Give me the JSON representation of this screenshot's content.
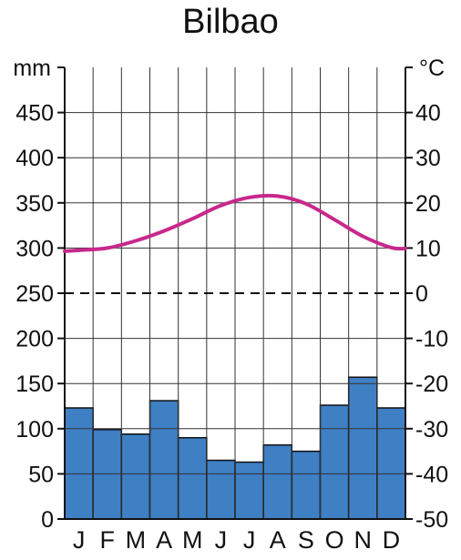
{
  "chart_data": {
    "type": "bar+line",
    "title": "Bilbao",
    "categories": [
      "J",
      "F",
      "M",
      "A",
      "M",
      "J",
      "J",
      "A",
      "S",
      "O",
      "N",
      "D"
    ],
    "precipitation": {
      "unit": "mm",
      "values": [
        123,
        99,
        94,
        131,
        90,
        65,
        63,
        82,
        75,
        126,
        157,
        123
      ],
      "ylim": [
        0,
        500
      ],
      "ticks": [
        0,
        50,
        100,
        150,
        200,
        250,
        300,
        350,
        400,
        450
      ],
      "color": "#3f7fc4"
    },
    "temperature": {
      "unit": "°C",
      "values": [
        9.5,
        10.0,
        11.6,
        13.8,
        16.5,
        19.4,
        21.2,
        21.5,
        19.8,
        16.3,
        12.6,
        10.1
      ],
      "ylim": [
        -50,
        50
      ],
      "ticks": [
        -50,
        -40,
        -30,
        -20,
        -10,
        0,
        10,
        20,
        30,
        40
      ],
      "color": "#c8288c"
    },
    "zero_line": "dashed",
    "grid": true
  }
}
